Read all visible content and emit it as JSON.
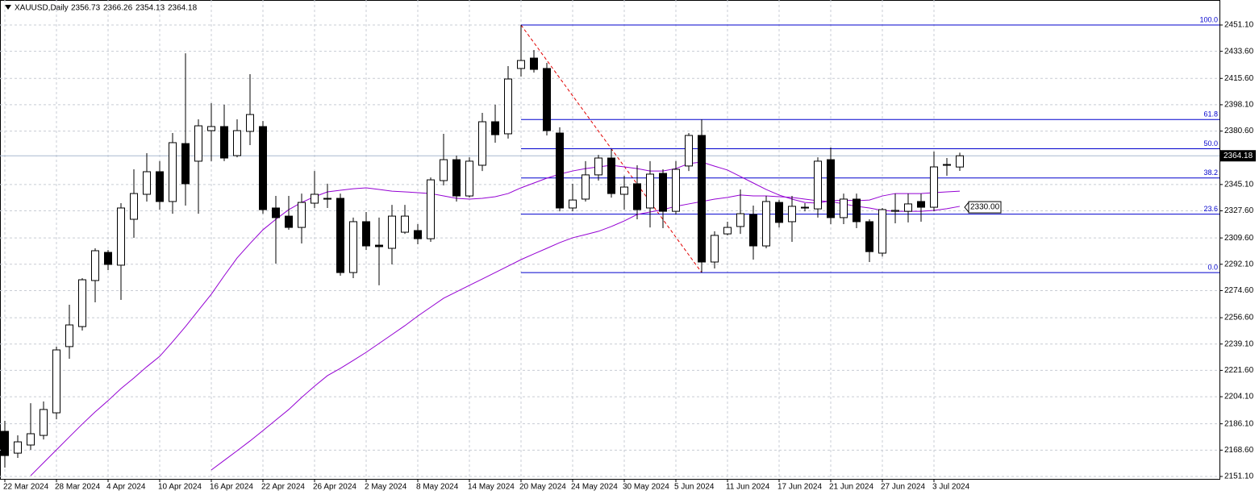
{
  "chart_data": {
    "type": "candlestick",
    "title": "XAUUSD,Daily",
    "categories": [
      "22 Mar 2024",
      null,
      null,
      null,
      "28 Mar 2024",
      null,
      null,
      null,
      "4 Apr 2024",
      null,
      null,
      null,
      "10 Apr 2024",
      null,
      null,
      null,
      "16 Apr 2024",
      null,
      null,
      null,
      "22 Apr 2024",
      null,
      null,
      null,
      "26 Apr 2024",
      null,
      null,
      null,
      "2 May 2024",
      null,
      null,
      null,
      "8 May 2024",
      null,
      null,
      null,
      "14 May 2024",
      null,
      null,
      null,
      "20 May 2024",
      null,
      null,
      null,
      "24 May 2024",
      null,
      null,
      null,
      "30 May 2024",
      null,
      null,
      null,
      "5 Jun 2024",
      null,
      null,
      null,
      "11 Jun 2024",
      null,
      null,
      null,
      "17 Jun 2024",
      null,
      null,
      null,
      "21 Jun 2024",
      null,
      null,
      null,
      "27 Jun 2024",
      null,
      null,
      null,
      "3 Jul 2024",
      null,
      null
    ],
    "ohlc": {
      "open": [
        2181.1,
        2166.6,
        2172.0,
        2178.4,
        2193.4,
        2237.4,
        2250.7,
        2281.3,
        2300.0,
        2291.5,
        2322.0,
        2338.6,
        2353.6,
        2333.8,
        2372.3,
        2360.6,
        2380.9,
        2383.6,
        2364.3,
        2380.4,
        2383.6,
        2329.5,
        2324.1,
        2316.6,
        2332.7,
        2335.4,
        2335.9,
        2286.6,
        2320.4,
        2304.8,
        2302.7,
        2313.4,
        2314.5,
        2309.1,
        2347.7,
        2361.6,
        2337.5,
        2357.9,
        2386.8,
        2378.8,
        2422.2,
        2429.1,
        2422.2,
        2379.3,
        2329.5,
        2335.4,
        2351.5,
        2362.7,
        2338.6,
        2345.6,
        2329.5,
        2352.5,
        2327.3,
        2357.4,
        2377.7,
        2293.6,
        2312.3,
        2317.2,
        2325.2,
        2304.3,
        2333.2,
        2320.4,
        2329.5,
        2328.9,
        2361.6,
        2323.1,
        2335.4,
        2320.4,
        2299.5,
        2327.3,
        2327.3,
        2333.8,
        2330.0,
        2357.9,
        2356.73
      ],
      "high": [
        2188.1,
        2178.4,
        2199.8,
        2200.9,
        2237.4,
        2265.2,
        2282.9,
        2302.7,
        2301.6,
        2332.7,
        2355.2,
        2365.9,
        2360.6,
        2379.3,
        2432.3,
        2388.4,
        2399.1,
        2398.1,
        2388.4,
        2418.4,
        2387.3,
        2337.5,
        2337.5,
        2339.1,
        2354.1,
        2345.6,
        2339.1,
        2323.1,
        2326.8,
        2323.1,
        2331.6,
        2331.6,
        2318.8,
        2349.8,
        2378.8,
        2364.3,
        2363.2,
        2392.7,
        2398.1,
        2423.8,
        2451.1,
        2434.5,
        2425.9,
        2383.1,
        2345.6,
        2360.6,
        2364.8,
        2368.6,
        2350.9,
        2357.9,
        2360.6,
        2355.2,
        2360.6,
        2379.3,
        2388.4,
        2314.0,
        2320.4,
        2341.8,
        2331.1,
        2337.5,
        2334.8,
        2337.5,
        2332.7,
        2363.2,
        2369.7,
        2339.1,
        2339.1,
        2322.0,
        2329.5,
        2339.1,
        2339.1,
        2339.1,
        2367.0,
        2362.7,
        2366.26
      ],
      "low": [
        2157.0,
        2163.4,
        2168.8,
        2175.7,
        2189.1,
        2229.3,
        2248.1,
        2266.8,
        2288.2,
        2268.4,
        2309.7,
        2333.8,
        2328.4,
        2325.7,
        2331.1,
        2325.7,
        2360.6,
        2360.6,
        2363.2,
        2371.3,
        2325.7,
        2292.5,
        2315.0,
        2305.9,
        2329.5,
        2329.5,
        2284.5,
        2282.9,
        2301.6,
        2278.1,
        2292.0,
        2312.3,
        2305.4,
        2307.0,
        2344.5,
        2333.8,
        2336.4,
        2354.1,
        2372.9,
        2375.6,
        2416.8,
        2419.5,
        2377.7,
        2327.3,
        2327.3,
        2333.8,
        2347.7,
        2336.4,
        2328.4,
        2322.0,
        2316.6,
        2316.1,
        2325.2,
        2354.1,
        2286.6,
        2289.3,
        2311.3,
        2312.3,
        2295.2,
        2302.7,
        2316.6,
        2307.0,
        2327.3,
        2323.1,
        2318.8,
        2318.8,
        2316.1,
        2293.6,
        2297.3,
        2319.3,
        2319.9,
        2320.4,
        2327.3,
        2350.9,
        2354.13
      ],
      "close": [
        2165.0,
        2174.1,
        2179.5,
        2195.6,
        2235.2,
        2251.8,
        2281.8,
        2301.1,
        2292.0,
        2329.5,
        2339.1,
        2353.6,
        2333.8,
        2372.9,
        2345.6,
        2384.1,
        2383.6,
        2362.7,
        2380.9,
        2391.6,
        2328.4,
        2323.1,
        2316.6,
        2333.2,
        2338.6,
        2335.9,
        2286.6,
        2320.4,
        2304.3,
        2303.8,
        2324.1,
        2324.1,
        2309.1,
        2348.2,
        2361.6,
        2337.5,
        2360.6,
        2386.8,
        2378.2,
        2415.2,
        2427.5,
        2421.6,
        2380.9,
        2329.5,
        2334.8,
        2351.5,
        2362.7,
        2339.1,
        2343.4,
        2328.4,
        2352.0,
        2327.3,
        2355.2,
        2377.7,
        2293.6,
        2311.3,
        2316.6,
        2325.7,
        2304.3,
        2333.8,
        2319.9,
        2330.6,
        2330.0,
        2360.6,
        2323.1,
        2335.4,
        2320.4,
        2300.5,
        2328.4,
        2327.9,
        2332.2,
        2330.0,
        2356.8,
        2358.4,
        2364.18
      ]
    },
    "series": [
      {
        "color": "#9400d3",
        "values": [
          null,
          null,
          2151.6,
          2160.2,
          2168.8,
          2177.4,
          2185.9,
          2194.0,
          2201.5,
          2209.5,
          2216.5,
          2224.0,
          2230.9,
          2240.6,
          2250.7,
          2261.5,
          2272.2,
          2284.5,
          2296.3,
          2305.9,
          2315.0,
          2322.0,
          2328.4,
          2333.2,
          2337.0,
          2340.2,
          2341.3,
          2342.3,
          2342.9,
          2341.8,
          2340.7,
          2340.2,
          2339.7,
          2339.1,
          2337.5,
          2335.9,
          2335.4,
          2335.9,
          2337.0,
          2339.1,
          2342.9,
          2346.1,
          2349.3,
          2352.0,
          2354.1,
          2355.7,
          2356.8,
          2357.9,
          2356.8,
          2355.7,
          2354.1,
          2354.1,
          2355.7,
          2359.0,
          2360.0,
          2357.3,
          2354.7,
          2350.4,
          2346.1,
          2341.8,
          2338.1,
          2335.4,
          2333.2,
          2332.7,
          2334.3,
          2334.8,
          2334.3,
          2334.8,
          2337.5,
          2339.1,
          2339.1,
          2339.1,
          2339.7,
          2340.2,
          2340.7
        ]
      },
      {
        "color": "#9400d3",
        "values": [
          null,
          null,
          null,
          null,
          null,
          null,
          null,
          null,
          null,
          null,
          null,
          null,
          null,
          null,
          null,
          null,
          2155.4,
          2161.8,
          2168.2,
          2174.7,
          2181.6,
          2188.6,
          2195.6,
          2203.6,
          2211.1,
          2218.1,
          2222.9,
          2228.2,
          2233.6,
          2239.5,
          2245.4,
          2251.3,
          2257.7,
          2263.6,
          2269.5,
          2273.8,
          2278.1,
          2282.3,
          2286.6,
          2290.9,
          2295.2,
          2299.0,
          2302.7,
          2306.5,
          2309.7,
          2311.8,
          2314.0,
          2317.2,
          2320.9,
          2325.2,
          2326.8,
          2328.4,
          2330.6,
          2332.2,
          2333.8,
          2335.4,
          2336.5,
          2338.1,
          2337.5,
          2337.5,
          2337.0,
          2336.5,
          2335.4,
          2334.3,
          2333.8,
          2332.2,
          2330.6,
          2329.5,
          2327.9,
          2327.3,
          2327.3,
          2327.3,
          2327.9,
          2329.0,
          2330.6
        ]
      }
    ],
    "fibonacci": {
      "high": 2451.1,
      "low": 2286.6,
      "color": "#0000cd",
      "levels": [
        {
          "value": 100,
          "label": "100.0"
        },
        61.8,
        {
          "value": 50,
          "label": "50.0"
        },
        38.2,
        23.6,
        {
          "value": 0,
          "label": "0.0"
        }
      ]
    },
    "price_label": {
      "value": 2330,
      "label": "2330.00"
    },
    "ylim": [
      2149.5,
      2467.7
    ],
    "yticks": [
      {
        "value": 2451.1,
        "label": "2451.10"
      },
      {
        "value": 2433.6,
        "label": "2433.60"
      },
      {
        "value": 2415.6,
        "label": "2415.60"
      },
      {
        "value": 2398.1,
        "label": "2398.10"
      },
      {
        "value": 2380.6,
        "label": "2380.60"
      },
      {
        "value": 2345.1,
        "label": "2345.10"
      },
      {
        "value": 2327.6,
        "label": "2327.60"
      },
      {
        "value": 2309.6,
        "label": "2309.60"
      },
      {
        "value": 2292.1,
        "label": "2292.10"
      },
      {
        "value": 2274.6,
        "label": "2274.60"
      },
      {
        "value": 2256.6,
        "label": "2256.60"
      },
      {
        "value": 2239.1,
        "label": "2239.10"
      },
      {
        "value": 2221.6,
        "label": "2221.60"
      },
      {
        "value": 2204.1,
        "label": "2204.10"
      },
      {
        "value": 2186.1,
        "label": "2186.10"
      },
      {
        "value": 2168.6,
        "label": "2168.60"
      },
      {
        "value": 2151.1,
        "label": "2151.10"
      }
    ],
    "grid": true
  }
}
